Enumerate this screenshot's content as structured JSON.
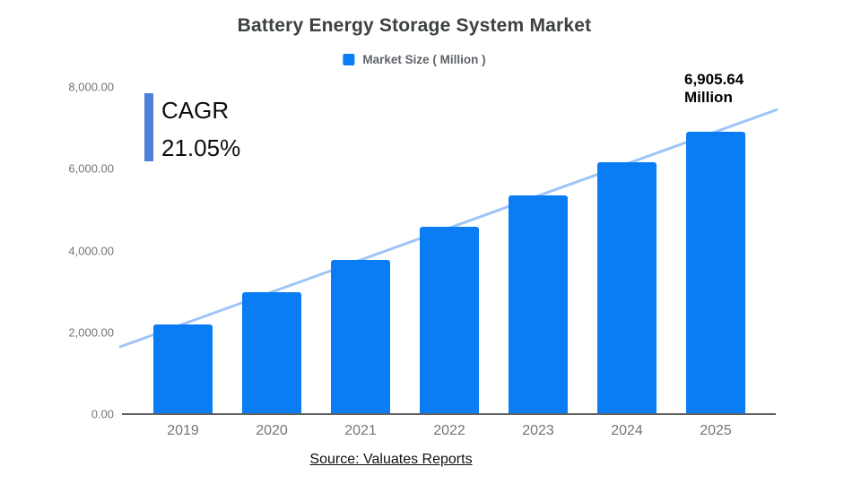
{
  "chart": {
    "title": "Battery Energy Storage System Market",
    "legend_label": "Market Size ( Million )",
    "source_text": "Source: Valuates Reports"
  },
  "cagr": {
    "label": "CAGR",
    "value": "21.05%"
  },
  "annotation": {
    "line1": "6,905.64",
    "line2": "Million"
  },
  "colors": {
    "bar": "#0a7df5",
    "trendline": "#9fc5f8",
    "cagr_accent": "#4f81d8",
    "title_text": "#3c4043",
    "legend_text": "#5f6368",
    "axis_text": "#757575",
    "axis_line": "#616161"
  },
  "chart_data": {
    "type": "bar",
    "title": "Battery Energy Storage System Market",
    "legend": [
      "Market Size ( Million )"
    ],
    "legend_position": "top",
    "categories": [
      "2019",
      "2020",
      "2021",
      "2022",
      "2023",
      "2024",
      "2025"
    ],
    "values": [
      2200,
      2990,
      3780,
      4570,
      5340,
      6150,
      6905.64
    ],
    "xlabel": "",
    "ylabel": "",
    "ylim": [
      0,
      8000
    ],
    "y_ticks": [
      {
        "label": "0.00",
        "value": 0
      },
      {
        "label": "2,000.00",
        "value": 2000
      },
      {
        "label": "4,000.00",
        "value": 4000
      },
      {
        "label": "6,000.00",
        "value": 6000
      },
      {
        "label": "8,000.00",
        "value": 8000
      }
    ],
    "gridlines": false,
    "trendline": true,
    "annotations": [
      "6,905.64 Million",
      "CAGR 21.05%",
      "Source: Valuates Reports"
    ]
  }
}
